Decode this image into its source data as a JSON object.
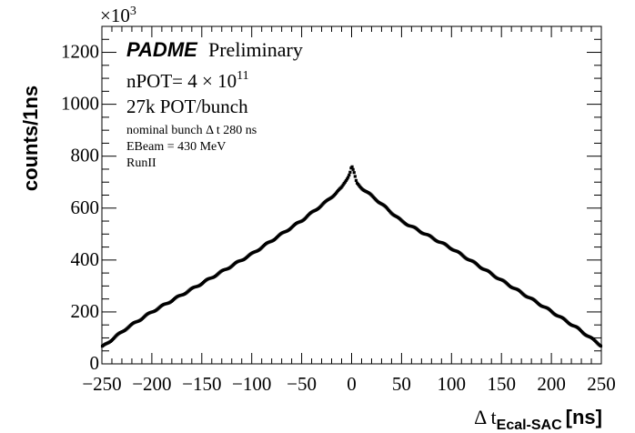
{
  "chart_data": {
    "type": "scatter",
    "title": "",
    "xlabel": "Δ t",
    "xlabel_sub": "Ecal-SAC",
    "xlabel_unit": "[ns]",
    "ylabel": "counts/1ns",
    "y_multiplier": "×10",
    "y_multiplier_exp": "3",
    "xlim": [
      -250,
      250
    ],
    "ylim": [
      0,
      1300
    ],
    "x_ticks": [
      -250,
      -200,
      -150,
      -100,
      -50,
      0,
      50,
      100,
      150,
      200,
      250
    ],
    "x_tick_labels": [
      "−250",
      "−200",
      "−150",
      "−100",
      "−50",
      "0",
      "50",
      "100",
      "150",
      "200",
      "250"
    ],
    "y_ticks": [
      0,
      200,
      400,
      600,
      800,
      1000,
      1200
    ],
    "y_tick_labels": [
      "0",
      "200",
      "400",
      "600",
      "800",
      "1000",
      "1200"
    ],
    "grid": false,
    "series": [
      {
        "name": "Δt Ecal-SAC",
        "color": "#000000",
        "x": [
          -250,
          -225,
          -200,
          -150,
          -100,
          -50,
          -25,
          -10,
          -3,
          -1,
          0,
          1,
          2,
          5,
          10,
          25,
          50,
          100,
          150,
          200,
          225,
          250
        ],
        "y": [
          64,
          138,
          200,
          310,
          423,
          552,
          626,
          678,
          725,
          745,
          765,
          752,
          742,
          696,
          678,
          632,
          550,
          445,
          322,
          202,
          140,
          70
        ]
      }
    ],
    "annotations": {
      "experiment": "PADME",
      "status": "Preliminary",
      "npot_prefix": "nPOT= 4 × 10",
      "npot_exp": "11",
      "pot_bunch": "27k POT/bunch",
      "bunch_dt": "nominal bunch Δ t 280 ns",
      "ebeam": "EBeam = 430 MeV",
      "run": "RunII"
    }
  }
}
